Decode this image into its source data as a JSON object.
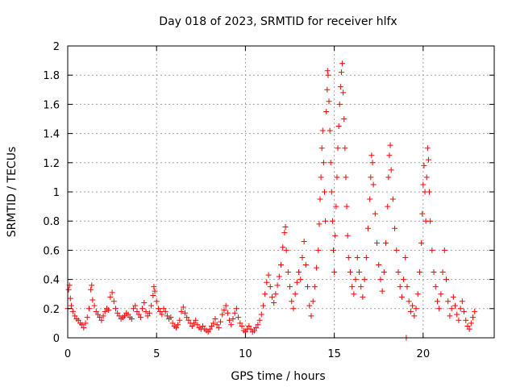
{
  "chart_data": {
    "type": "scatter",
    "title": "Day 018 of 2023, SRMTID for receiver hlfx",
    "xlabel": "GPS time / hours",
    "ylabel": "SRMTID / TECUs",
    "xlim": [
      0,
      24
    ],
    "ylim": [
      0,
      2
    ],
    "x_ticks": [
      0,
      5,
      10,
      15,
      20
    ],
    "x_tick_labels": [
      "0",
      "5",
      "10",
      "15",
      "20"
    ],
    "y_ticks": [
      0,
      0.2,
      0.4,
      0.6,
      0.8,
      1,
      1.2,
      1.4,
      1.6,
      1.8,
      2
    ],
    "y_tick_labels": [
      "0",
      "0.2",
      "0.4",
      "0.6",
      "0.8",
      "1",
      "1.2",
      "1.4",
      "1.6",
      "1.8",
      "2"
    ],
    "grid": true,
    "marker": "+",
    "color": "#ff0000",
    "series": [
      {
        "name": "SRMTID",
        "points": [
          [
            0.0,
            0.2
          ],
          [
            0.05,
            0.33
          ],
          [
            0.1,
            0.36
          ],
          [
            0.15,
            0.27
          ],
          [
            0.2,
            0.22
          ],
          [
            0.3,
            0.18
          ],
          [
            0.4,
            0.15
          ],
          [
            0.5,
            0.13
          ],
          [
            0.6,
            0.12
          ],
          [
            0.7,
            0.1
          ],
          [
            0.8,
            0.09
          ],
          [
            0.9,
            0.07
          ],
          [
            1.0,
            0.1
          ],
          [
            1.1,
            0.14
          ],
          [
            1.2,
            0.2
          ],
          [
            1.3,
            0.33
          ],
          [
            1.35,
            0.36
          ],
          [
            1.4,
            0.26
          ],
          [
            1.5,
            0.22
          ],
          [
            1.6,
            0.18
          ],
          [
            1.7,
            0.16
          ],
          [
            1.8,
            0.14
          ],
          [
            1.9,
            0.12
          ],
          [
            2.0,
            0.15
          ],
          [
            2.1,
            0.18
          ],
          [
            2.2,
            0.2
          ],
          [
            2.3,
            0.19
          ],
          [
            2.4,
            0.28
          ],
          [
            2.5,
            0.31
          ],
          [
            2.6,
            0.25
          ],
          [
            2.7,
            0.2
          ],
          [
            2.8,
            0.17
          ],
          [
            2.9,
            0.15
          ],
          [
            3.0,
            0.13
          ],
          [
            3.1,
            0.14
          ],
          [
            3.2,
            0.15
          ],
          [
            3.3,
            0.17
          ],
          [
            3.4,
            0.16
          ],
          [
            3.5,
            0.14
          ],
          [
            3.6,
            0.13
          ],
          [
            3.7,
            0.2
          ],
          [
            3.8,
            0.22
          ],
          [
            3.9,
            0.18
          ],
          [
            4.0,
            0.16
          ],
          [
            4.1,
            0.14
          ],
          [
            4.2,
            0.2
          ],
          [
            4.3,
            0.24
          ],
          [
            4.4,
            0.18
          ],
          [
            4.5,
            0.15
          ],
          [
            4.6,
            0.17
          ],
          [
            4.7,
            0.22
          ],
          [
            4.8,
            0.29
          ],
          [
            4.85,
            0.35
          ],
          [
            4.9,
            0.32
          ],
          [
            5.0,
            0.25
          ],
          [
            5.1,
            0.2
          ],
          [
            5.2,
            0.18
          ],
          [
            5.3,
            0.16
          ],
          [
            5.4,
            0.2
          ],
          [
            5.5,
            0.18
          ],
          [
            5.6,
            0.15
          ],
          [
            5.7,
            0.13
          ],
          [
            5.8,
            0.14
          ],
          [
            5.9,
            0.1
          ],
          [
            6.0,
            0.08
          ],
          [
            6.1,
            0.07
          ],
          [
            6.2,
            0.09
          ],
          [
            6.3,
            0.12
          ],
          [
            6.4,
            0.18
          ],
          [
            6.5,
            0.21
          ],
          [
            6.6,
            0.17
          ],
          [
            6.7,
            0.14
          ],
          [
            6.8,
            0.12
          ],
          [
            6.9,
            0.1
          ],
          [
            7.0,
            0.08
          ],
          [
            7.1,
            0.1
          ],
          [
            7.2,
            0.12
          ],
          [
            7.3,
            0.09
          ],
          [
            7.4,
            0.07
          ],
          [
            7.5,
            0.06
          ],
          [
            7.6,
            0.08
          ],
          [
            7.7,
            0.06
          ],
          [
            7.8,
            0.05
          ],
          [
            7.9,
            0.04
          ],
          [
            8.0,
            0.06
          ],
          [
            8.1,
            0.08
          ],
          [
            8.2,
            0.1
          ],
          [
            8.3,
            0.13
          ],
          [
            8.4,
            0.09
          ],
          [
            8.5,
            0.07
          ],
          [
            8.6,
            0.11
          ],
          [
            8.7,
            0.16
          ],
          [
            8.8,
            0.19
          ],
          [
            8.9,
            0.22
          ],
          [
            9.0,
            0.17
          ],
          [
            9.1,
            0.12
          ],
          [
            9.2,
            0.09
          ],
          [
            9.3,
            0.13
          ],
          [
            9.4,
            0.17
          ],
          [
            9.5,
            0.2
          ],
          [
            9.6,
            0.14
          ],
          [
            9.7,
            0.1
          ],
          [
            9.8,
            0.08
          ],
          [
            9.9,
            0.05
          ],
          [
            10.0,
            0.04
          ],
          [
            10.1,
            0.06
          ],
          [
            10.2,
            0.08
          ],
          [
            10.3,
            0.06
          ],
          [
            10.4,
            0.04
          ],
          [
            10.5,
            0.05
          ],
          [
            10.6,
            0.07
          ],
          [
            10.7,
            0.09
          ],
          [
            10.8,
            0.12
          ],
          [
            10.9,
            0.16
          ],
          [
            11.0,
            0.22
          ],
          [
            11.1,
            0.3
          ],
          [
            11.2,
            0.38
          ],
          [
            11.3,
            0.43
          ],
          [
            11.4,
            0.35
          ],
          [
            11.5,
            0.28
          ],
          [
            11.6,
            0.24
          ],
          [
            11.7,
            0.3
          ],
          [
            11.8,
            0.36
          ],
          [
            11.9,
            0.42
          ],
          [
            12.0,
            0.5
          ],
          [
            12.1,
            0.62
          ],
          [
            12.2,
            0.72
          ],
          [
            12.25,
            0.76
          ],
          [
            12.3,
            0.6
          ],
          [
            12.4,
            0.45
          ],
          [
            12.5,
            0.35
          ],
          [
            12.6,
            0.25
          ],
          [
            12.7,
            0.2
          ],
          [
            12.8,
            0.3
          ],
          [
            12.9,
            0.38
          ],
          [
            13.0,
            0.45
          ],
          [
            13.1,
            0.4
          ],
          [
            13.2,
            0.55
          ],
          [
            13.3,
            0.66
          ],
          [
            13.4,
            0.5
          ],
          [
            13.5,
            0.35
          ],
          [
            13.6,
            0.22
          ],
          [
            13.7,
            0.15
          ],
          [
            13.8,
            0.25
          ],
          [
            13.9,
            0.35
          ],
          [
            14.0,
            0.48
          ],
          [
            14.1,
            0.6
          ],
          [
            14.15,
            0.78
          ],
          [
            14.2,
            0.95
          ],
          [
            14.25,
            1.1
          ],
          [
            14.3,
            1.3
          ],
          [
            14.35,
            1.42
          ],
          [
            14.4,
            1.2
          ],
          [
            14.45,
            1.0
          ],
          [
            14.5,
            0.8
          ],
          [
            14.55,
            1.55
          ],
          [
            14.6,
            1.7
          ],
          [
            14.62,
            1.83
          ],
          [
            14.65,
            1.8
          ],
          [
            14.7,
            1.62
          ],
          [
            14.75,
            1.42
          ],
          [
            14.8,
            1.2
          ],
          [
            14.85,
            1.0
          ],
          [
            14.9,
            0.8
          ],
          [
            14.95,
            0.6
          ],
          [
            15.0,
            0.45
          ],
          [
            15.05,
            0.7
          ],
          [
            15.1,
            0.9
          ],
          [
            15.15,
            1.1
          ],
          [
            15.2,
            1.3
          ],
          [
            15.25,
            1.45
          ],
          [
            15.3,
            1.6
          ],
          [
            15.35,
            1.72
          ],
          [
            15.4,
            1.82
          ],
          [
            15.45,
            1.88
          ],
          [
            15.5,
            1.68
          ],
          [
            15.55,
            1.5
          ],
          [
            15.6,
            1.3
          ],
          [
            15.65,
            1.1
          ],
          [
            15.7,
            0.9
          ],
          [
            15.75,
            0.7
          ],
          [
            15.8,
            0.55
          ],
          [
            15.9,
            0.45
          ],
          [
            16.0,
            0.35
          ],
          [
            16.1,
            0.3
          ],
          [
            16.2,
            0.4
          ],
          [
            16.3,
            0.55
          ],
          [
            16.4,
            0.45
          ],
          [
            16.5,
            0.35
          ],
          [
            16.6,
            0.28
          ],
          [
            16.7,
            0.4
          ],
          [
            16.8,
            0.55
          ],
          [
            16.9,
            0.75
          ],
          [
            17.0,
            0.95
          ],
          [
            17.05,
            1.1
          ],
          [
            17.1,
            1.25
          ],
          [
            17.15,
            1.2
          ],
          [
            17.2,
            1.05
          ],
          [
            17.3,
            0.85
          ],
          [
            17.4,
            0.65
          ],
          [
            17.5,
            0.5
          ],
          [
            17.6,
            0.4
          ],
          [
            17.7,
            0.32
          ],
          [
            17.8,
            0.45
          ],
          [
            17.9,
            0.65
          ],
          [
            18.0,
            0.9
          ],
          [
            18.05,
            1.1
          ],
          [
            18.1,
            1.25
          ],
          [
            18.15,
            1.32
          ],
          [
            18.2,
            1.15
          ],
          [
            18.3,
            0.95
          ],
          [
            18.4,
            0.75
          ],
          [
            18.5,
            0.6
          ],
          [
            18.6,
            0.45
          ],
          [
            18.7,
            0.35
          ],
          [
            18.8,
            0.28
          ],
          [
            18.9,
            0.4
          ],
          [
            19.0,
            0.55
          ],
          [
            19.05,
            0.0
          ],
          [
            19.1,
            0.35
          ],
          [
            19.2,
            0.25
          ],
          [
            19.3,
            0.18
          ],
          [
            19.4,
            0.22
          ],
          [
            19.5,
            0.15
          ],
          [
            19.6,
            0.2
          ],
          [
            19.7,
            0.3
          ],
          [
            19.8,
            0.45
          ],
          [
            19.9,
            0.65
          ],
          [
            19.95,
            0.85
          ],
          [
            20.0,
            1.05
          ],
          [
            20.05,
            1.18
          ],
          [
            20.1,
            1.0
          ],
          [
            20.15,
            0.8
          ],
          [
            20.2,
            1.1
          ],
          [
            20.25,
            1.3
          ],
          [
            20.3,
            1.22
          ],
          [
            20.35,
            1.0
          ],
          [
            20.4,
            0.8
          ],
          [
            20.5,
            0.6
          ],
          [
            20.6,
            0.45
          ],
          [
            20.7,
            0.35
          ],
          [
            20.8,
            0.25
          ],
          [
            20.9,
            0.2
          ],
          [
            21.0,
            0.3
          ],
          [
            21.1,
            0.45
          ],
          [
            21.2,
            0.6
          ],
          [
            21.3,
            0.4
          ],
          [
            21.4,
            0.25
          ],
          [
            21.5,
            0.15
          ],
          [
            21.6,
            0.2
          ],
          [
            21.7,
            0.28
          ],
          [
            21.8,
            0.22
          ],
          [
            21.9,
            0.16
          ],
          [
            22.0,
            0.12
          ],
          [
            22.1,
            0.2
          ],
          [
            22.2,
            0.25
          ],
          [
            22.3,
            0.18
          ],
          [
            22.4,
            0.12
          ],
          [
            22.5,
            0.08
          ],
          [
            22.6,
            0.06
          ],
          [
            22.7,
            0.1
          ],
          [
            22.8,
            0.14
          ],
          [
            22.9,
            0.18
          ]
        ]
      }
    ]
  }
}
